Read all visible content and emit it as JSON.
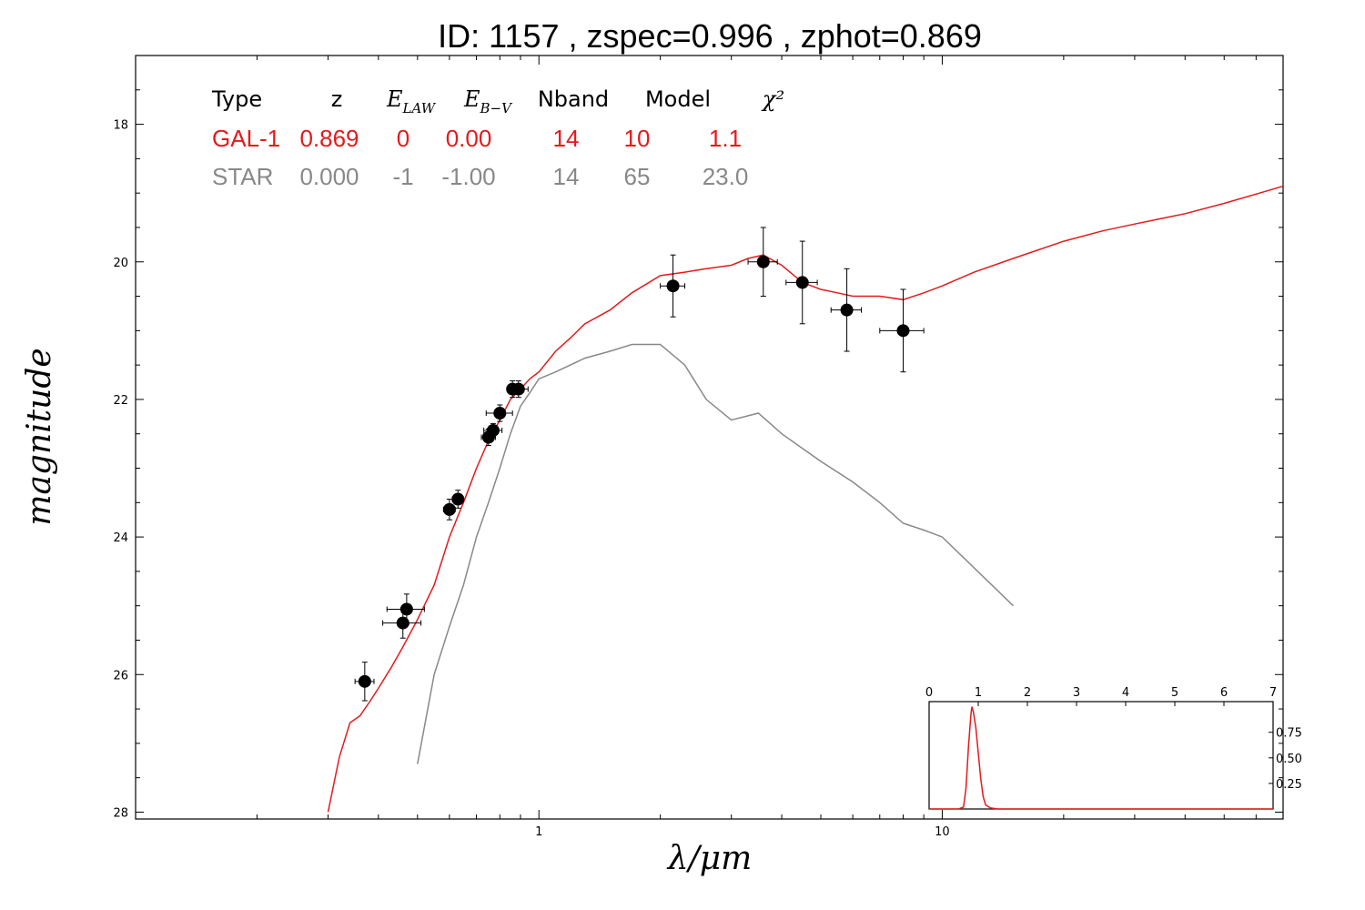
{
  "title": "ID:  1157  , zspec=0.996 , zphot=0.869",
  "colors": {
    "galaxy": "#e41a1c",
    "star": "#888888",
    "points": "#000000"
  },
  "chart_data": {
    "type": "scatter",
    "xlabel": "λ/μm",
    "ylabel": "magnitude",
    "xscale": "log",
    "xlim": [
      0.1,
      70
    ],
    "ylim": [
      28.1,
      17.0
    ],
    "x_ticks": [
      {
        "value": 1,
        "label": "1"
      },
      {
        "value": 10,
        "label": "10"
      }
    ],
    "y_ticks": [
      {
        "value": 18,
        "label": "18"
      },
      {
        "value": 20,
        "label": "20"
      },
      {
        "value": 22,
        "label": "22"
      },
      {
        "value": 24,
        "label": "24"
      },
      {
        "value": 26,
        "label": "26"
      },
      {
        "value": 28,
        "label": "28"
      }
    ],
    "legend_table": {
      "headers": [
        "Type",
        "z",
        "E_LAW",
        "E_B-V",
        "Nband",
        "Model",
        "χ²"
      ],
      "rows": [
        {
          "series": "galaxy",
          "cells": [
            "GAL-1",
            "0.869",
            "0",
            "0.00",
            "14",
            "10",
            "1.1"
          ]
        },
        {
          "series": "star",
          "cells": [
            "STAR",
            "0.000",
            "-1",
            "-1.00",
            "14",
            "65",
            "23.0"
          ]
        }
      ]
    },
    "series": [
      {
        "key": "galaxy",
        "type": "line",
        "x": [
          0.3,
          0.32,
          0.34,
          0.36,
          0.38,
          0.4,
          0.43,
          0.46,
          0.5,
          0.55,
          0.6,
          0.65,
          0.7,
          0.75,
          0.8,
          0.85,
          0.9,
          0.95,
          1.0,
          1.1,
          1.2,
          1.3,
          1.5,
          1.7,
          2.0,
          2.3,
          2.6,
          3.0,
          3.3,
          3.6,
          4.0,
          4.5,
          5.0,
          5.5,
          6.0,
          7.0,
          8.0,
          9.0,
          10.0,
          12.0,
          15.0,
          20.0,
          25.0,
          30.0,
          40.0,
          50.0,
          70.0
        ],
        "y": [
          28.0,
          27.2,
          26.7,
          26.6,
          26.4,
          26.2,
          25.9,
          25.6,
          25.2,
          24.7,
          24.0,
          23.5,
          23.0,
          22.6,
          22.3,
          22.0,
          21.85,
          21.7,
          21.6,
          21.3,
          21.1,
          20.9,
          20.7,
          20.45,
          20.2,
          20.15,
          20.1,
          20.05,
          19.95,
          19.9,
          20.05,
          20.3,
          20.4,
          20.45,
          20.5,
          20.5,
          20.55,
          20.45,
          20.35,
          20.15,
          19.95,
          19.7,
          19.55,
          19.45,
          19.3,
          19.15,
          18.9
        ]
      },
      {
        "key": "star",
        "type": "line",
        "x": [
          0.5,
          0.55,
          0.6,
          0.65,
          0.7,
          0.75,
          0.8,
          0.85,
          0.9,
          0.95,
          1.0,
          1.1,
          1.3,
          1.5,
          1.7,
          2.0,
          2.3,
          2.6,
          3.0,
          3.5,
          4.0,
          5.0,
          6.0,
          7.0,
          8.0,
          9.0,
          10.0,
          15.0
        ],
        "y": [
          27.3,
          26.0,
          25.3,
          24.7,
          24.0,
          23.5,
          23.0,
          22.5,
          22.1,
          21.9,
          21.7,
          21.6,
          21.4,
          21.3,
          21.2,
          21.2,
          21.5,
          22.0,
          22.3,
          22.2,
          22.5,
          22.9,
          23.2,
          23.5,
          23.8,
          23.9,
          24.0,
          25.0
        ]
      },
      {
        "key": "points",
        "type": "scatter",
        "points": [
          {
            "x": 0.37,
            "y": 26.1,
            "xerr": [
              0.02,
              0.02
            ],
            "yerr": 0.28
          },
          {
            "x": 0.46,
            "y": 25.25,
            "xerr": [
              0.05,
              0.05
            ],
            "yerr": 0.22
          },
          {
            "x": 0.47,
            "y": 25.05,
            "xerr": [
              0.05,
              0.05
            ],
            "yerr": 0.22
          },
          {
            "x": 0.6,
            "y": 23.6,
            "xerr": [
              0.02,
              0.02
            ],
            "yerr": 0.15
          },
          {
            "x": 0.63,
            "y": 23.45,
            "xerr": [
              0.02,
              0.02
            ],
            "yerr": 0.13
          },
          {
            "x": 0.75,
            "y": 22.55,
            "xerr": [
              0.03,
              0.03
            ],
            "yerr": 0.12
          },
          {
            "x": 0.77,
            "y": 22.45,
            "xerr": [
              0.04,
              0.04
            ],
            "yerr": 0.1
          },
          {
            "x": 0.8,
            "y": 22.2,
            "xerr": [
              0.06,
              0.06
            ],
            "yerr": 0.12
          },
          {
            "x": 0.86,
            "y": 21.85,
            "xerr": [
              0.02,
              0.02
            ],
            "yerr": 0.12
          },
          {
            "x": 0.89,
            "y": 21.85,
            "xerr": [
              0.05,
              0.05
            ],
            "yerr": 0.12
          },
          {
            "x": 2.15,
            "y": 20.35,
            "xerr": [
              0.15,
              0.15
            ],
            "yerr": 0.45
          },
          {
            "x": 3.6,
            "y": 20.0,
            "xerr": [
              0.3,
              0.3
            ],
            "yerr": 0.5
          },
          {
            "x": 4.5,
            "y": 20.3,
            "xerr": [
              0.4,
              0.4
            ],
            "yerr": 0.6
          },
          {
            "x": 5.8,
            "y": 20.7,
            "xerr": [
              0.5,
              0.5
            ],
            "yerr": 0.6
          },
          {
            "x": 8.0,
            "y": 21.0,
            "xerr": [
              1.0,
              1.0
            ],
            "yerr": 0.6
          }
        ]
      }
    ],
    "inset": {
      "type": "line",
      "xlim": [
        0,
        7
      ],
      "ylim": [
        0,
        1.05
      ],
      "x_ticks": [
        "0",
        "1",
        "2",
        "3",
        "4",
        "5",
        "6",
        "7"
      ],
      "y_ticks": [
        {
          "value": 0.25,
          "label": "0.25"
        },
        {
          "value": 0.5,
          "label": "0.50"
        },
        {
          "value": 0.75,
          "label": "0.75"
        }
      ],
      "x": [
        0,
        0.6,
        0.7,
        0.75,
        0.8,
        0.85,
        0.87,
        0.9,
        0.95,
        1.0,
        1.05,
        1.1,
        1.15,
        1.25,
        1.4,
        7.0
      ],
      "y": [
        0,
        0,
        0.02,
        0.2,
        0.6,
        0.92,
        1.0,
        0.95,
        0.8,
        0.55,
        0.3,
        0.12,
        0.04,
        0.01,
        0,
        0
      ]
    }
  }
}
